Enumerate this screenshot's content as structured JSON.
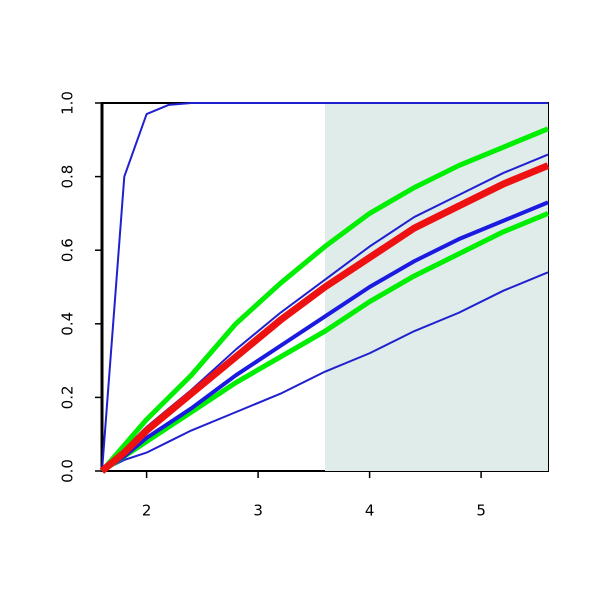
{
  "chart_data": {
    "type": "line",
    "x": [
      1.6,
      1.8,
      2.0,
      2.2,
      2.4,
      2.8,
      3.2,
      3.6,
      4.0,
      4.4,
      4.8,
      5.2,
      5.6
    ],
    "series": [
      {
        "color": "#2020d0",
        "linewidth": 2,
        "values": [
          0,
          0.8,
          0.97,
          0.995,
          1,
          1,
          1,
          1,
          1,
          1,
          1,
          1,
          1
        ]
      },
      {
        "color": "#2020d0",
        "linewidth": 2,
        "values": [
          0,
          0.03,
          0.05,
          0.08,
          0.11,
          0.16,
          0.21,
          0.27,
          0.32,
          0.38,
          0.43,
          0.49,
          0.54
        ]
      },
      {
        "color": "#00ee00",
        "linewidth": 5,
        "values": [
          0,
          0.04,
          0.08,
          0.12,
          0.16,
          0.24,
          0.31,
          0.38,
          0.46,
          0.53,
          0.59,
          0.65,
          0.7
        ]
      },
      {
        "color": "#1a1ae0",
        "linewidth": 4,
        "values": [
          0,
          0.04,
          0.09,
          0.13,
          0.17,
          0.26,
          0.34,
          0.42,
          0.5,
          0.57,
          0.63,
          0.68,
          0.73
        ]
      },
      {
        "color": "#2020d0",
        "linewidth": 2,
        "values": [
          0,
          0.06,
          0.12,
          0.17,
          0.22,
          0.33,
          0.43,
          0.52,
          0.61,
          0.69,
          0.75,
          0.81,
          0.86
        ]
      },
      {
        "color": "#00ee00",
        "linewidth": 5,
        "values": [
          0,
          0.07,
          0.14,
          0.2,
          0.26,
          0.4,
          0.51,
          0.61,
          0.7,
          0.77,
          0.83,
          0.88,
          0.93
        ]
      },
      {
        "color": "#ee1111",
        "linewidth": 7,
        "values": [
          0,
          0.05,
          0.11,
          0.16,
          0.21,
          0.31,
          0.41,
          0.5,
          0.58,
          0.66,
          0.72,
          0.78,
          0.83
        ]
      }
    ],
    "xlim": [
      1.6,
      5.6
    ],
    "ylim": [
      0,
      1
    ],
    "xticks": [
      2,
      3,
      4,
      5
    ],
    "yticks": [
      {
        "value": 0,
        "label": "0.0"
      },
      {
        "value": 0.2,
        "label": "0.2"
      },
      {
        "value": 0.4,
        "label": "0.4"
      },
      {
        "value": 0.6,
        "label": "0.6"
      },
      {
        "value": 0.8,
        "label": "0.8"
      },
      {
        "value": 1,
        "label": "1.0"
      }
    ],
    "shaded_from": 3.6,
    "shade_color": "#dfecea"
  }
}
